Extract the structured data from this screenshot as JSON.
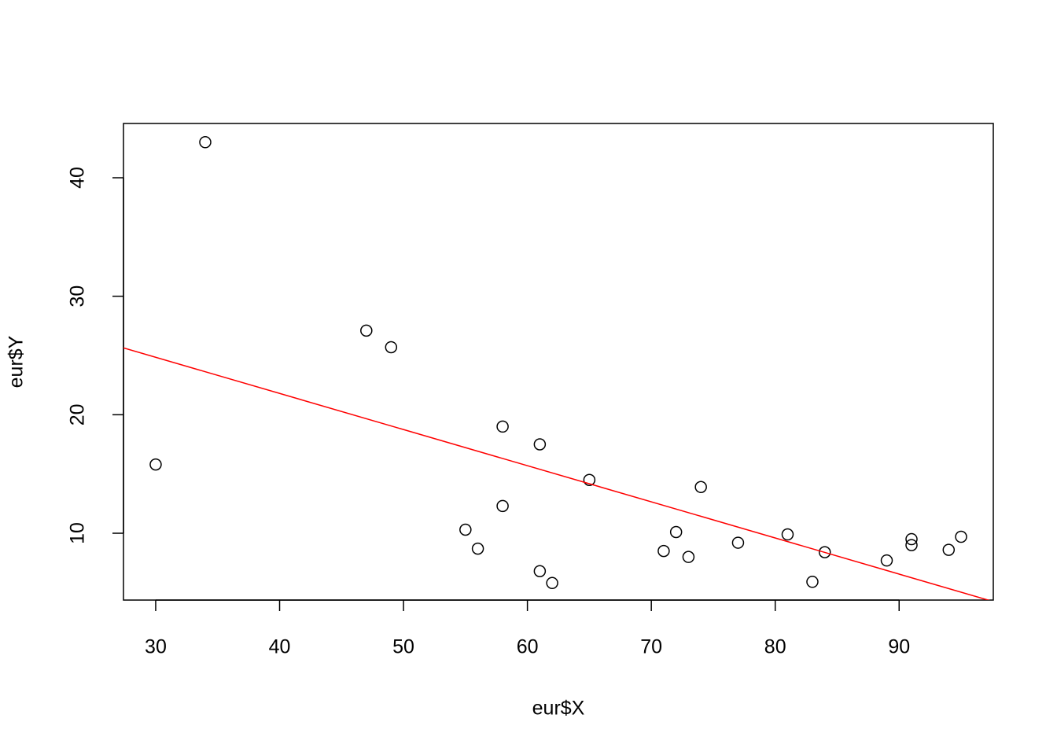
{
  "chart_data": {
    "type": "scatter",
    "x_label": "eur$X",
    "y_label": "eur$Y",
    "x": [
      30,
      34,
      47,
      49,
      55,
      56,
      58,
      58,
      61,
      61,
      62,
      65,
      71,
      72,
      73,
      74,
      77,
      81,
      83,
      84,
      89,
      91,
      91,
      94,
      95
    ],
    "y": [
      15.8,
      43.0,
      27.1,
      25.7,
      10.3,
      8.7,
      19.0,
      12.3,
      17.5,
      6.8,
      5.8,
      14.5,
      8.5,
      10.1,
      8.0,
      13.9,
      9.2,
      9.9,
      5.9,
      8.4,
      7.7,
      9.5,
      9.0,
      8.6,
      9.7
    ],
    "color": "#000000",
    "abline": {
      "intercept": 34.0,
      "slope": -0.305,
      "color": "#ff0000"
    },
    "xlim": [
      27.4,
      97.6
    ],
    "ylim": [
      4.36,
      44.58
    ],
    "xticks": [
      30,
      40,
      50,
      60,
      70,
      80,
      90
    ],
    "yticks": [
      10,
      20,
      30,
      40
    ],
    "grid": false
  }
}
